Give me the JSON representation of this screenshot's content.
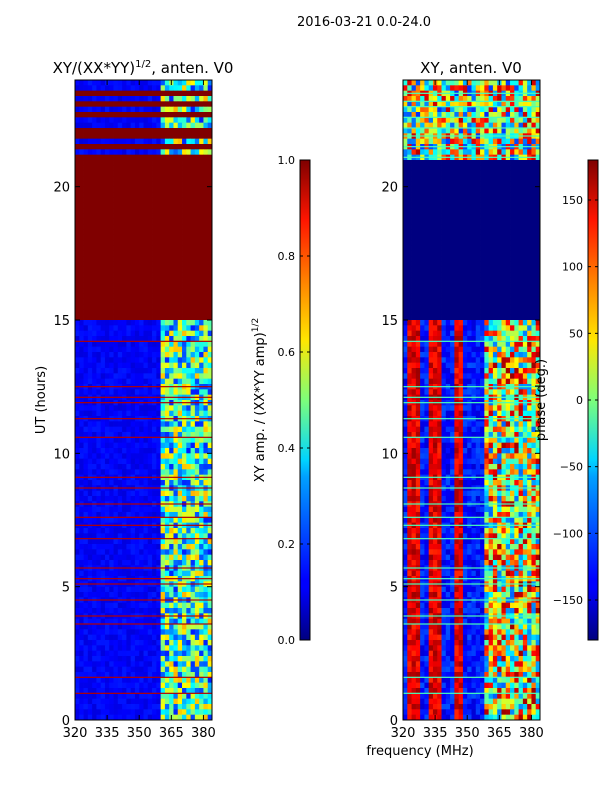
{
  "figure_title": "2016-03-21 0.0-24.0",
  "shared_xlabel": "frequency (MHz)",
  "chart_data": [
    {
      "type": "heatmap",
      "title_main": "XY/(XX*YY)",
      "title_sup": "1/2",
      "title_tail": ", anten. V0",
      "ylabel": "UT (hours)",
      "xlim": [
        320,
        384
      ],
      "ylim": [
        0,
        24
      ],
      "xticks": [
        320,
        335,
        350,
        365,
        380
      ],
      "yticks": [
        0,
        5,
        10,
        15,
        20
      ],
      "colormap": "jet",
      "background_value": 0.12,
      "saturated_band_hours": [
        15.1,
        21.0
      ],
      "active_band_mhz": [
        361,
        384
      ],
      "flagged_rows_hours": [
        21.1,
        21.5,
        21.9,
        22.2,
        22.6,
        23.0,
        23.2,
        23.5,
        14.2,
        12.5,
        12.1,
        11.9,
        11.3,
        10.6,
        9.1,
        8.7,
        8.1,
        7.6,
        7.3,
        6.8,
        5.7,
        5.3,
        5.1,
        4.5,
        3.9,
        3.6,
        1.6,
        1.0
      ],
      "colorbar": {
        "label_main": "XY amp. / (XX*YY amp)",
        "label_sup": "1/2",
        "ticks": [
          "0.0",
          "0.2",
          "0.4",
          "0.6",
          "0.8",
          "1.0"
        ],
        "tick_values": [
          0.0,
          0.2,
          0.4,
          0.6,
          0.8,
          1.0
        ],
        "range": [
          0.0,
          1.0
        ]
      }
    },
    {
      "type": "heatmap",
      "title_main": "XY, anten. V0",
      "xlim": [
        320,
        384
      ],
      "ylim": [
        0,
        24
      ],
      "xticks": [
        320,
        335,
        350,
        365,
        380
      ],
      "yticks": [
        0,
        5,
        10,
        15,
        20
      ],
      "colormap": "jet",
      "flat_band_hours": [
        15.1,
        21.0
      ],
      "flat_band_value_deg": -180,
      "stripe_channels_mhz": [
        325,
        335,
        346
      ],
      "active_band_mhz": [
        358,
        384
      ],
      "colorbar": {
        "label": "phase (deg.)",
        "ticks": [
          "150",
          "100",
          "50",
          "0",
          "−50",
          "−100",
          "−150"
        ],
        "tick_values": [
          150,
          100,
          50,
          0,
          -50,
          -100,
          -150
        ],
        "range": [
          -180,
          180
        ]
      }
    }
  ]
}
